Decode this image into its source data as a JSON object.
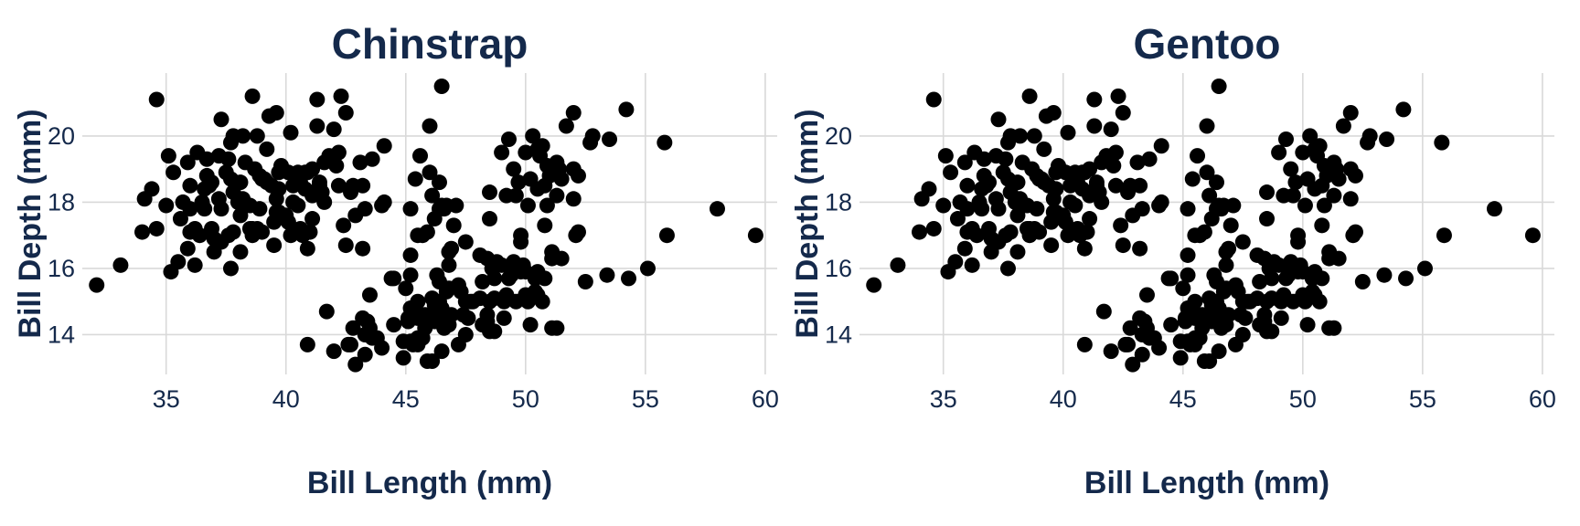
{
  "chart_data": [
    {
      "type": "scatter",
      "title": "Chinstrap",
      "xlabel": "Bill Length (mm)",
      "ylabel": "Bill Depth (mm)",
      "xlim": [
        31.5,
        60.5
      ],
      "ylim": [
        12.8,
        21.9
      ],
      "xticks": [
        35,
        40,
        45,
        50,
        55,
        60
      ],
      "yticks": [
        14,
        16,
        18,
        20
      ],
      "grid": true,
      "point_color": "#000000",
      "points": [
        [
          32.1,
          15.5
        ],
        [
          33.1,
          16.1
        ],
        [
          34.0,
          17.1
        ],
        [
          34.1,
          18.1
        ],
        [
          34.4,
          18.4
        ],
        [
          34.6,
          21.1
        ],
        [
          34.6,
          17.2
        ],
        [
          35.0,
          17.9
        ],
        [
          35.1,
          19.4
        ],
        [
          35.3,
          18.9
        ],
        [
          35.2,
          15.9
        ],
        [
          35.5,
          16.2
        ],
        [
          35.6,
          17.5
        ],
        [
          35.7,
          18.0
        ],
        [
          35.9,
          19.2
        ],
        [
          35.9,
          16.6
        ],
        [
          36.0,
          18.5
        ],
        [
          36.0,
          17.1
        ],
        [
          36.0,
          17.8
        ],
        [
          36.2,
          17.2
        ],
        [
          36.2,
          16.1
        ],
        [
          36.3,
          19.5
        ],
        [
          36.4,
          17.0
        ],
        [
          36.5,
          18.0
        ],
        [
          36.6,
          17.8
        ],
        [
          36.6,
          18.4
        ],
        [
          36.7,
          19.3
        ],
        [
          36.7,
          18.8
        ],
        [
          36.8,
          18.5
        ],
        [
          36.9,
          18.6
        ],
        [
          37.0,
          16.9
        ],
        [
          37.0,
          16.5
        ],
        [
          37.2,
          18.1
        ],
        [
          37.2,
          19.4
        ],
        [
          37.3,
          20.5
        ],
        [
          37.3,
          17.8
        ],
        [
          37.3,
          16.8
        ],
        [
          37.5,
          18.9
        ],
        [
          37.6,
          19.3
        ],
        [
          37.6,
          17.0
        ],
        [
          37.7,
          18.7
        ],
        [
          37.7,
          16.0
        ],
        [
          37.7,
          19.8
        ],
        [
          37.8,
          18.3
        ],
        [
          37.8,
          17.1
        ],
        [
          37.8,
          20.0
        ],
        [
          37.9,
          18.6
        ],
        [
          38.1,
          18.6
        ],
        [
          38.1,
          17.6
        ],
        [
          38.1,
          16.5
        ],
        [
          38.2,
          18.1
        ],
        [
          38.2,
          20.0
        ],
        [
          38.3,
          19.2
        ],
        [
          38.5,
          17.9
        ],
        [
          38.5,
          17.2
        ],
        [
          38.6,
          21.2
        ],
        [
          38.6,
          17.0
        ],
        [
          38.6,
          17.2
        ],
        [
          38.7,
          19.0
        ],
        [
          38.8,
          17.2
        ],
        [
          38.8,
          20.0
        ],
        [
          38.9,
          17.8
        ],
        [
          38.9,
          18.8
        ],
        [
          39.0,
          17.1
        ],
        [
          39.0,
          18.7
        ],
        [
          39.1,
          18.7
        ],
        [
          39.2,
          19.6
        ],
        [
          39.2,
          18.6
        ],
        [
          39.3,
          20.6
        ],
        [
          39.5,
          16.7
        ],
        [
          39.5,
          17.4
        ],
        [
          39.6,
          17.7
        ],
        [
          39.6,
          18.1
        ],
        [
          39.6,
          20.7
        ],
        [
          39.7,
          17.7
        ],
        [
          39.7,
          18.4
        ],
        [
          39.7,
          18.9
        ],
        [
          39.8,
          19.1
        ],
        [
          40.1,
          18.9
        ],
        [
          40.2,
          17.0
        ],
        [
          40.2,
          20.1
        ],
        [
          40.3,
          18.0
        ],
        [
          40.3,
          18.5
        ],
        [
          40.5,
          17.9
        ],
        [
          40.5,
          18.9
        ],
        [
          40.6,
          17.2
        ],
        [
          40.6,
          18.6
        ],
        [
          40.7,
          17.0
        ],
        [
          40.8,
          18.4
        ],
        [
          40.8,
          18.9
        ],
        [
          40.9,
          16.6
        ],
        [
          40.9,
          18.9
        ],
        [
          41.0,
          17.1
        ],
        [
          41.1,
          18.2
        ],
        [
          41.1,
          19.0
        ],
        [
          41.1,
          17.5
        ],
        [
          41.3,
          21.1
        ],
        [
          41.3,
          20.3
        ],
        [
          41.4,
          18.6
        ],
        [
          41.4,
          18.5
        ],
        [
          41.5,
          18.3
        ],
        [
          41.6,
          18.0
        ],
        [
          41.7,
          14.7
        ],
        [
          41.8,
          19.4
        ],
        [
          42.0,
          20.2
        ],
        [
          42.1,
          19.1
        ],
        [
          42.2,
          18.5
        ],
        [
          42.2,
          19.5
        ],
        [
          42.3,
          21.2
        ],
        [
          42.5,
          20.7
        ],
        [
          42.5,
          16.7
        ],
        [
          42.7,
          18.3
        ],
        [
          42.8,
          18.5
        ],
        [
          42.9,
          17.6
        ],
        [
          43.1,
          19.2
        ],
        [
          43.2,
          18.5
        ],
        [
          43.3,
          17.8
        ],
        [
          43.2,
          16.6
        ],
        [
          44.1,
          18.0
        ],
        [
          44.1,
          19.7
        ],
        [
          45.2,
          17.8
        ],
        [
          45.4,
          18.7
        ],
        [
          45.5,
          17.0
        ],
        [
          45.6,
          19.4
        ],
        [
          45.7,
          17.0
        ],
        [
          46.0,
          18.9
        ],
        [
          46.1,
          18.2
        ],
        [
          46.2,
          17.5
        ],
        [
          46.4,
          18.6
        ],
        [
          46.4,
          17.8
        ],
        [
          46.5,
          17.9
        ],
        [
          46.6,
          17.8
        ],
        [
          46.7,
          17.9
        ],
        [
          46.8,
          16.5
        ],
        [
          46.9,
          16.6
        ],
        [
          47.0,
          17.3
        ],
        [
          47.5,
          16.8
        ],
        [
          48.1,
          16.4
        ],
        [
          48.5,
          17.5
        ],
        [
          49.0,
          19.5
        ],
        [
          49.2,
          18.2
        ],
        [
          49.3,
          19.9
        ],
        [
          49.5,
          19.0
        ],
        [
          49.6,
          18.2
        ],
        [
          49.7,
          18.6
        ],
        [
          50.0,
          19.5
        ],
        [
          50.1,
          17.9
        ],
        [
          50.2,
          18.7
        ],
        [
          50.3,
          20.0
        ],
        [
          50.5,
          18.4
        ],
        [
          50.5,
          19.6
        ],
        [
          50.6,
          19.4
        ],
        [
          50.7,
          19.7
        ],
        [
          50.8,
          18.5
        ],
        [
          50.9,
          17.9
        ],
        [
          50.9,
          19.1
        ],
        [
          51.0,
          18.8
        ],
        [
          51.3,
          18.2
        ],
        [
          51.3,
          19.2
        ],
        [
          51.4,
          19.0
        ],
        [
          51.5,
          18.7
        ],
        [
          51.7,
          20.3
        ],
        [
          52.0,
          18.1
        ],
        [
          52.0,
          19.0
        ],
        [
          52.0,
          20.7
        ],
        [
          52.2,
          18.8
        ],
        [
          52.7,
          19.8
        ],
        [
          52.8,
          20.0
        ],
        [
          53.5,
          19.9
        ],
        [
          54.2,
          20.8
        ],
        [
          55.8,
          19.8
        ],
        [
          58.0,
          17.8
        ],
        [
          40.9,
          13.7
        ],
        [
          42.0,
          13.5
        ],
        [
          42.6,
          13.7
        ],
        [
          42.7,
          13.7
        ],
        [
          42.8,
          14.2
        ],
        [
          42.9,
          13.1
        ],
        [
          43.2,
          14.5
        ],
        [
          43.3,
          13.4
        ],
        [
          43.3,
          14.0
        ],
        [
          43.4,
          14.4
        ],
        [
          43.5,
          14.2
        ],
        [
          43.5,
          15.2
        ],
        [
          43.6,
          13.9
        ],
        [
          43.8,
          13.9
        ],
        [
          44.0,
          13.6
        ],
        [
          44.4,
          15.7
        ],
        [
          44.5,
          14.3
        ],
        [
          44.5,
          15.7
        ],
        [
          44.9,
          13.3
        ],
        [
          44.9,
          13.8
        ],
        [
          45.0,
          15.4
        ],
        [
          45.1,
          14.5
        ],
        [
          45.1,
          14.4
        ],
        [
          45.2,
          13.8
        ],
        [
          45.2,
          14.8
        ],
        [
          45.2,
          15.8
        ],
        [
          45.2,
          16.4
        ],
        [
          45.3,
          13.7
        ],
        [
          45.3,
          13.8
        ],
        [
          45.4,
          14.6
        ],
        [
          45.5,
          13.7
        ],
        [
          45.5,
          15.0
        ],
        [
          45.5,
          14.5
        ],
        [
          45.5,
          13.9
        ],
        [
          45.7,
          13.9
        ],
        [
          45.8,
          14.2
        ],
        [
          45.8,
          14.6
        ],
        [
          45.9,
          13.2
        ],
        [
          46.1,
          13.2
        ],
        [
          46.1,
          15.1
        ],
        [
          46.2,
          14.4
        ],
        [
          46.2,
          14.5
        ],
        [
          46.2,
          14.9
        ],
        [
          46.3,
          15.8
        ],
        [
          46.4,
          15.0
        ],
        [
          46.4,
          15.6
        ],
        [
          46.5,
          13.5
        ],
        [
          46.5,
          14.4
        ],
        [
          46.5,
          14.8
        ],
        [
          46.6,
          14.2
        ],
        [
          46.7,
          15.3
        ],
        [
          46.8,
          14.3
        ],
        [
          46.8,
          15.4
        ],
        [
          46.8,
          16.1
        ],
        [
          46.9,
          14.6
        ],
        [
          47.2,
          13.7
        ],
        [
          47.2,
          15.5
        ],
        [
          47.3,
          15.3
        ],
        [
          47.4,
          14.6
        ],
        [
          47.5,
          14.0
        ],
        [
          47.5,
          15.0
        ],
        [
          47.6,
          14.5
        ],
        [
          47.7,
          15.0
        ],
        [
          47.8,
          15.0
        ],
        [
          48.1,
          15.1
        ],
        [
          48.2,
          14.3
        ],
        [
          48.2,
          15.6
        ],
        [
          48.4,
          14.4
        ],
        [
          48.4,
          16.3
        ],
        [
          48.4,
          14.6
        ],
        [
          48.5,
          14.1
        ],
        [
          48.5,
          15.0
        ],
        [
          48.6,
          16.0
        ],
        [
          48.7,
          14.1
        ],
        [
          48.7,
          15.1
        ],
        [
          48.7,
          15.7
        ],
        [
          48.8,
          16.2
        ],
        [
          49.0,
          16.1
        ],
        [
          49.1,
          14.5
        ],
        [
          49.1,
          15.0
        ],
        [
          49.2,
          15.2
        ],
        [
          49.3,
          15.7
        ],
        [
          49.4,
          15.8
        ],
        [
          49.5,
          16.2
        ],
        [
          49.5,
          16.1
        ],
        [
          49.6,
          16.0
        ],
        [
          49.6,
          15.0
        ],
        [
          49.8,
          15.9
        ],
        [
          49.8,
          16.8
        ],
        [
          49.9,
          16.1
        ],
        [
          50.0,
          15.2
        ],
        [
          50.0,
          15.9
        ],
        [
          50.1,
          15.0
        ],
        [
          50.2,
          14.3
        ],
        [
          50.4,
          15.3
        ],
        [
          50.4,
          15.7
        ],
        [
          50.5,
          15.2
        ],
        [
          50.5,
          15.9
        ],
        [
          50.7,
          15.0
        ],
        [
          50.8,
          15.7
        ],
        [
          50.8,
          17.3
        ],
        [
          51.1,
          14.2
        ],
        [
          51.1,
          16.3
        ],
        [
          51.1,
          16.5
        ],
        [
          51.3,
          14.2
        ],
        [
          51.5,
          16.3
        ],
        [
          52.1,
          17.0
        ],
        [
          52.2,
          17.1
        ],
        [
          52.5,
          15.6
        ],
        [
          53.4,
          15.8
        ],
        [
          54.3,
          15.7
        ],
        [
          55.1,
          16.0
        ],
        [
          55.9,
          17.0
        ],
        [
          59.6,
          17.0
        ],
        [
          40.0,
          17.6
        ],
        [
          40.1,
          17.4
        ],
        [
          39.4,
          18.5
        ],
        [
          38.0,
          18.0
        ],
        [
          36.9,
          17.2
        ],
        [
          41.6,
          19.2
        ],
        [
          42.4,
          17.3
        ],
        [
          44.0,
          17.9
        ],
        [
          46.0,
          20.3
        ],
        [
          46.5,
          21.5
        ],
        [
          43.6,
          19.3
        ],
        [
          48.5,
          18.3
        ],
        [
          45.9,
          17.1
        ],
        [
          47.1,
          17.9
        ],
        [
          49.8,
          17.0
        ]
      ]
    },
    {
      "type": "scatter",
      "title": "Gentoo",
      "xlabel": "Bill Length (mm)",
      "ylabel": "Bill Depth (mm)",
      "xlim": [
        31.5,
        60.5
      ],
      "ylim": [
        12.8,
        21.9
      ],
      "xticks": [
        35,
        40,
        45,
        50,
        55,
        60
      ],
      "yticks": [
        14,
        16,
        18,
        20
      ],
      "grid": true,
      "point_color": "#000000",
      "points": "same as Chinstrap"
    }
  ]
}
